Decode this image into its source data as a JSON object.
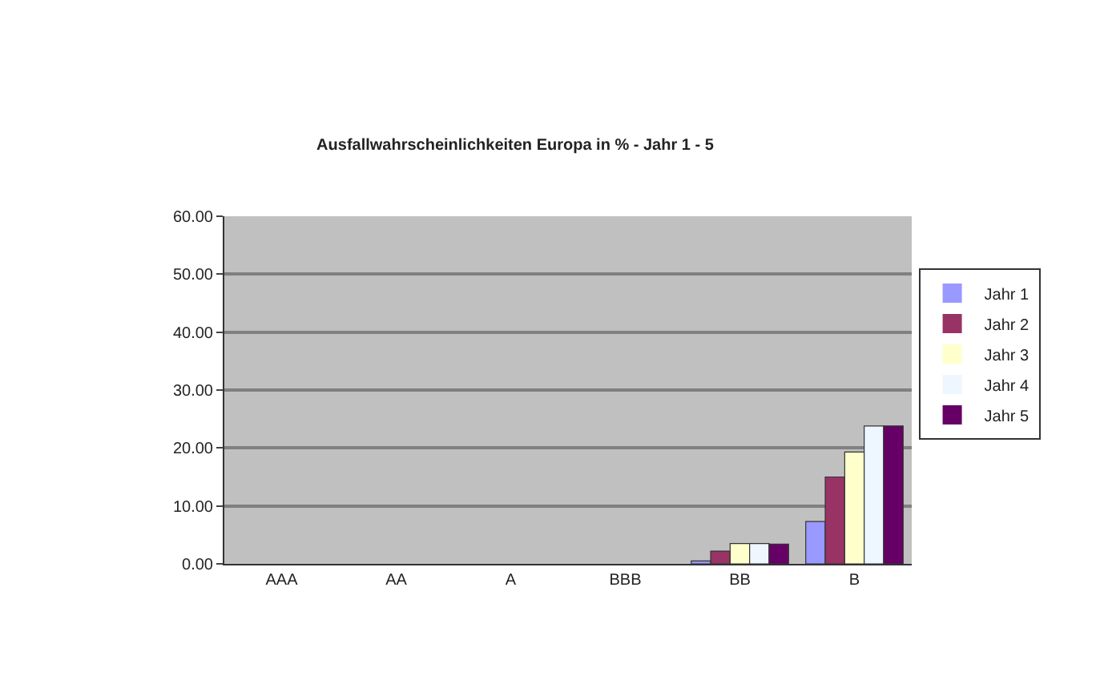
{
  "chart_data": {
    "type": "bar",
    "title": "Ausfallwahrscheinlichkeiten Europa in % - Jahr 1 - 5",
    "categories": [
      "AAA",
      "AA",
      "A",
      "BBB",
      "BB",
      "B"
    ],
    "series": [
      {
        "name": "Jahr 1",
        "color": "#9999ff",
        "values": [
          0,
          0,
          0,
          0,
          0.5,
          7.3
        ]
      },
      {
        "name": "Jahr 2",
        "color": "#993366",
        "values": [
          0,
          0,
          0,
          0,
          2.2,
          15.0
        ]
      },
      {
        "name": "Jahr 3",
        "color": "#ffffcc",
        "values": [
          0,
          0,
          0,
          0,
          3.5,
          19.3
        ]
      },
      {
        "name": "Jahr 4",
        "color": "#eef6ff",
        "values": [
          0,
          0,
          0,
          0,
          3.5,
          23.8
        ]
      },
      {
        "name": "Jahr 5",
        "color": "#660066",
        "values": [
          0,
          0,
          0,
          0,
          3.4,
          23.8
        ]
      }
    ],
    "ylim": [
      0,
      60
    ],
    "yticks": [
      {
        "value": 0,
        "label": "0.00"
      },
      {
        "value": 10,
        "label": "10.00"
      },
      {
        "value": 20,
        "label": "20.00"
      },
      {
        "value": 30,
        "label": "30.00"
      },
      {
        "value": 40,
        "label": "40.00"
      },
      {
        "value": 50,
        "label": "50.00"
      },
      {
        "value": 60,
        "label": "60.00"
      }
    ],
    "grid": "y",
    "legend": "right"
  }
}
